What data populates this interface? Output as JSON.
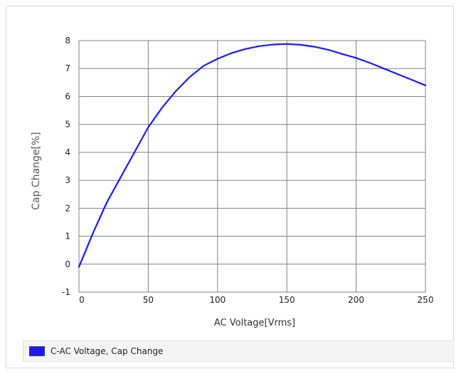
{
  "chart_data": {
    "type": "line",
    "title": "",
    "xlabel": "AC Voltage[Vrms]",
    "ylabel": "Cap Change[%]",
    "xlim": [
      0,
      250
    ],
    "ylim": [
      -1,
      8
    ],
    "x_ticks": [
      "0",
      "50",
      "100",
      "150",
      "200",
      "250"
    ],
    "y_ticks": [
      "-1",
      "0",
      "1",
      "2",
      "3",
      "4",
      "5",
      "6",
      "7",
      "8"
    ],
    "grid": true,
    "legend_position": "bottom",
    "series": [
      {
        "name": "C-AC Voltage, Cap Change",
        "color": "#1a1af0",
        "x": [
          0,
          10,
          20,
          30,
          40,
          50,
          60,
          70,
          80,
          90,
          100,
          110,
          120,
          130,
          140,
          150,
          160,
          170,
          180,
          190,
          200,
          210,
          220,
          230,
          240,
          250
        ],
        "y": [
          -0.1,
          1.1,
          2.2,
          3.1,
          4.0,
          4.9,
          5.6,
          6.2,
          6.7,
          7.1,
          7.35,
          7.55,
          7.7,
          7.8,
          7.86,
          7.88,
          7.85,
          7.78,
          7.67,
          7.52,
          7.38,
          7.2,
          7.0,
          6.8,
          6.6,
          6.4
        ]
      }
    ]
  }
}
